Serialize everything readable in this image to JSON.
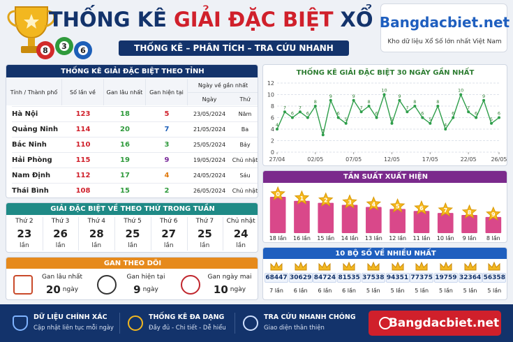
{
  "header": {
    "title_1": "THỐNG KÊ",
    "title_2": "GIẢI ĐẶC BIỆT",
    "title_3": "XỔ SỐ",
    "subtitle": "THỐNG KÊ – PHÂN TÍCH – TRA CỨU NHANH",
    "balls": [
      "8",
      "3",
      "6"
    ],
    "logo": "Bangdacbiet.net",
    "tagline": "Kho dữ liệu Xổ Số lớn nhất Việt Nam"
  },
  "province_table": {
    "title": "THỐNG KÊ GIẢI ĐẶC BIỆT THEO TỈNH",
    "columns": [
      "Tỉnh / Thành phố",
      "Số lần về",
      "Gan lâu nhất",
      "Gan hiện tại",
      "Ngày về gần nhất"
    ],
    "sub_columns": [
      "Ngày",
      "Thứ"
    ],
    "rows": [
      [
        "Hà Nội",
        123,
        18,
        5,
        "23/05/2024",
        "Năm"
      ],
      [
        "Quảng Ninh",
        114,
        20,
        7,
        "21/05/2024",
        "Ba"
      ],
      [
        "Bắc Ninh",
        110,
        16,
        3,
        "25/05/2024",
        "Bảy"
      ],
      [
        "Hải Phòng",
        115,
        19,
        9,
        "19/05/2024",
        "Chủ nhật"
      ],
      [
        "Nam Định",
        112,
        17,
        4,
        "24/05/2024",
        "Sáu"
      ],
      [
        "Thái Bình",
        108,
        15,
        2,
        "26/05/2024",
        "Chủ nhật"
      ]
    ]
  },
  "weekday": {
    "title": "GIẢI ĐẶC BIỆT VỀ THEO THỨ TRONG TUẦN",
    "days": [
      "Thứ 2",
      "Thứ 3",
      "Thứ 4",
      "Thứ 5",
      "Thứ 6",
      "Thứ 7",
      "Chủ nhật"
    ],
    "counts": [
      23,
      26,
      28,
      25,
      27,
      25,
      24
    ],
    "unit": "lần"
  },
  "gan": {
    "title": "GAN THEO DÕI",
    "items": [
      {
        "label": "Gan lâu nhất",
        "value": 20,
        "unit": "ngày"
      },
      {
        "label": "Gan hiện tại",
        "value": 9,
        "unit": "ngày"
      },
      {
        "label": "Gan ngày mai",
        "value": 10,
        "unit": "ngày"
      }
    ]
  },
  "chart_data": [
    {
      "type": "line",
      "title": "THỐNG KÊ GIẢI ĐẶC BIỆT 30 NGÀY GẦN NHẤT",
      "categories": [
        "27/04",
        null,
        null,
        null,
        null,
        "02/05",
        null,
        null,
        null,
        null,
        "07/05",
        null,
        null,
        null,
        null,
        "12/05",
        null,
        null,
        null,
        null,
        "17/05",
        null,
        null,
        null,
        null,
        "22/05",
        null,
        null,
        null,
        "26/05"
      ],
      "values": [
        4,
        7,
        6,
        7,
        6,
        8,
        3,
        9,
        6,
        5,
        9,
        7,
        8,
        6,
        10,
        5,
        9,
        7,
        8,
        6,
        5,
        8,
        4,
        6,
        10,
        7,
        6,
        9,
        5,
        6
      ],
      "color": "#2e9e4a",
      "ylim": [
        0,
        12
      ],
      "yticks": [
        0,
        2,
        4,
        6,
        8,
        10,
        12
      ],
      "grid": true
    },
    {
      "type": "bar",
      "title": "TẦN SUẤT XUẤT HIỆN",
      "categories": [
        "0",
        "1",
        "2",
        "3",
        "4",
        "5",
        "6",
        "7",
        "8",
        "9"
      ],
      "values": [
        18,
        16,
        15,
        14,
        13,
        12,
        11,
        10,
        9,
        8
      ],
      "value_labels": [
        "18 lần",
        "16 lần",
        "15 lần",
        "14 lần",
        "13 lần",
        "12 lần",
        "11 lần",
        "10 lần",
        "9 lần",
        "8 lần"
      ],
      "color": "#d9488a"
    }
  ],
  "top_numbers": {
    "title": "10 BỘ SỐ VỀ NHIỀU NHẤT",
    "items": [
      {
        "number": "68447",
        "count": "7 lần"
      },
      {
        "number": "30629",
        "count": "6 lần"
      },
      {
        "number": "84724",
        "count": "6 lần"
      },
      {
        "number": "81535",
        "count": "6 lần"
      },
      {
        "number": "37538",
        "count": "5 lần"
      },
      {
        "number": "94351",
        "count": "5 lần"
      },
      {
        "number": "77375",
        "count": "5 lần"
      },
      {
        "number": "19759",
        "count": "5 lần"
      },
      {
        "number": "32364",
        "count": "5 lần"
      },
      {
        "number": "56358",
        "count": "5 lần"
      }
    ]
  },
  "footer": {
    "features": [
      {
        "title": "DỮ LIỆU CHÍNH XÁC",
        "text": "Cập nhật liên tục mỗi ngày"
      },
      {
        "title": "THỐNG KÊ ĐA DẠNG",
        "text": "Đầy đủ - Chi tiết - Dễ hiểu"
      },
      {
        "title": "TRA CỨU NHANH CHÓNG",
        "text": "Giao diện thân thiện"
      }
    ],
    "button": "Bangdacbiet.net"
  }
}
